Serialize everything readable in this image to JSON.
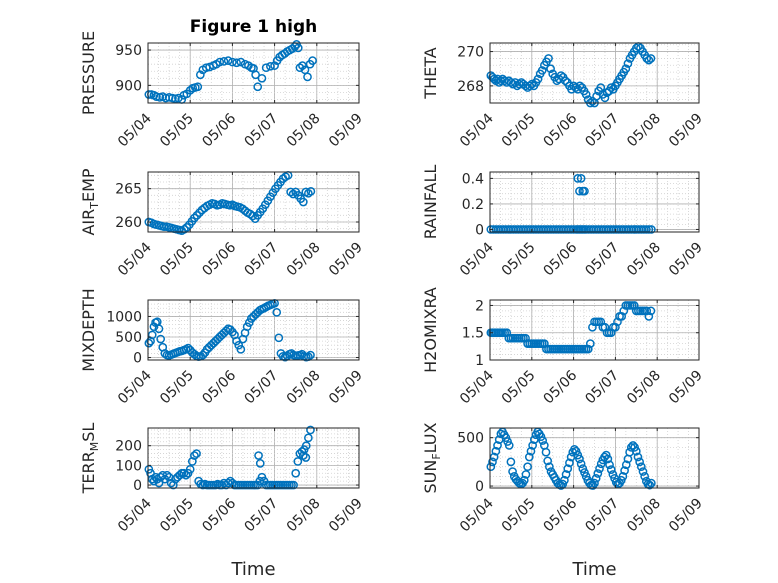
{
  "figure": {
    "title": "Figure 1 high"
  },
  "chart_data": [
    {
      "type": "scatter",
      "title": "Figure 1 high",
      "ylabel": "PRESSURE",
      "xlabel": "",
      "xlim": [
        "05/04",
        "05/09"
      ],
      "xticks": [
        "05/04",
        "05/05",
        "05/06",
        "05/07",
        "05/08",
        "05/09"
      ],
      "ylim": [
        875,
        960
      ],
      "yticks": [
        900,
        950
      ],
      "grid": true,
      "x": [
        4.02,
        4.08,
        4.14,
        4.2,
        4.28,
        4.35,
        4.42,
        4.5,
        4.58,
        4.65,
        4.72,
        4.8,
        4.85,
        4.92,
        5.0,
        5.06,
        5.12,
        5.18,
        5.24,
        5.3,
        5.38,
        5.46,
        5.55,
        5.62,
        5.7,
        5.8,
        5.9,
        6.0,
        6.1,
        6.2,
        6.3,
        6.38,
        6.45,
        6.5,
        6.55,
        6.6,
        6.7,
        6.8,
        6.9,
        7.0,
        7.06,
        7.12,
        7.18,
        7.24,
        7.3,
        7.36,
        7.42,
        7.48,
        7.52,
        7.56,
        7.6,
        7.66,
        7.72,
        7.78,
        7.84,
        7.9
      ],
      "y": [
        887,
        887,
        886,
        884,
        883,
        884,
        882,
        883,
        882,
        881,
        882,
        880,
        886,
        888,
        893,
        896,
        897,
        898,
        915,
        922,
        925,
        926,
        928,
        930,
        933,
        934,
        935,
        933,
        932,
        933,
        930,
        928,
        925,
        924,
        915,
        898,
        910,
        925,
        927,
        928,
        935,
        940,
        943,
        945,
        948,
        950,
        952,
        955,
        958,
        953,
        925,
        928,
        922,
        912,
        930,
        935
      ]
    },
    {
      "type": "scatter",
      "ylabel": "THETA",
      "xlabel": "",
      "xlim": [
        "05/04",
        "05/09"
      ],
      "xticks": [
        "05/04",
        "05/05",
        "05/06",
        "05/07",
        "05/08",
        "05/09"
      ],
      "ylim": [
        267,
        270.5
      ],
      "yticks": [
        268,
        270
      ],
      "grid": true,
      "x": [
        4.02,
        4.06,
        4.1,
        4.14,
        4.18,
        4.22,
        4.26,
        4.3,
        4.35,
        4.4,
        4.45,
        4.5,
        4.55,
        4.6,
        4.65,
        4.7,
        4.75,
        4.8,
        4.85,
        4.9,
        4.95,
        5.0,
        5.05,
        5.1,
        5.15,
        5.2,
        5.25,
        5.3,
        5.35,
        5.4,
        5.45,
        5.5,
        5.55,
        5.6,
        5.65,
        5.7,
        5.75,
        5.8,
        5.85,
        5.9,
        5.95,
        6.0,
        6.05,
        6.1,
        6.15,
        6.2,
        6.25,
        6.3,
        6.35,
        6.4,
        6.45,
        6.5,
        6.55,
        6.6,
        6.65,
        6.7,
        6.75,
        6.8,
        6.85,
        6.9,
        6.95,
        7.0,
        7.05,
        7.1,
        7.15,
        7.2,
        7.25,
        7.3,
        7.35,
        7.4,
        7.45,
        7.5,
        7.55,
        7.6,
        7.65,
        7.7,
        7.75,
        7.8,
        7.85
      ],
      "y": [
        268.6,
        268.5,
        268.4,
        268.3,
        268.4,
        268.2,
        268.3,
        268.4,
        268.3,
        268.2,
        268.3,
        268.2,
        268.1,
        268.2,
        268.0,
        268.1,
        268.2,
        268.1,
        268.0,
        267.9,
        268.0,
        268.1,
        268.0,
        268.2,
        268.4,
        268.7,
        268.9,
        269.2,
        269.4,
        269.6,
        269.0,
        268.7,
        268.5,
        268.3,
        268.4,
        268.6,
        268.5,
        268.3,
        268.2,
        268.0,
        267.8,
        268.0,
        267.9,
        267.8,
        268.0,
        267.9,
        267.7,
        267.5,
        267.2,
        267.0,
        267.1,
        267.0,
        267.4,
        267.7,
        267.9,
        267.5,
        267.3,
        267.6,
        267.7,
        267.9,
        267.8,
        268.0,
        268.2,
        268.4,
        268.6,
        268.8,
        269.0,
        269.3,
        269.6,
        269.8,
        270.0,
        270.2,
        270.3,
        270.2,
        270.0,
        269.8,
        269.6,
        269.5,
        269.6
      ]
    },
    {
      "type": "scatter",
      "ylabel": "AIR_TEMP",
      "xlabel": "",
      "xlim": [
        "05/04",
        "05/09"
      ],
      "xticks": [
        "05/04",
        "05/05",
        "05/06",
        "05/07",
        "05/08",
        "05/09"
      ],
      "ylim": [
        258.5,
        267.5
      ],
      "yticks": [
        260,
        265
      ],
      "grid": true,
      "x": [
        4.02,
        4.08,
        4.14,
        4.2,
        4.26,
        4.32,
        4.38,
        4.44,
        4.5,
        4.56,
        4.62,
        4.68,
        4.74,
        4.8,
        4.86,
        4.92,
        4.98,
        5.04,
        5.1,
        5.16,
        5.22,
        5.28,
        5.34,
        5.4,
        5.46,
        5.52,
        5.58,
        5.64,
        5.7,
        5.76,
        5.82,
        5.88,
        5.94,
        6.0,
        6.06,
        6.12,
        6.18,
        6.24,
        6.3,
        6.36,
        6.42,
        6.48,
        6.54,
        6.6,
        6.66,
        6.72,
        6.78,
        6.84,
        6.9,
        6.96,
        7.02,
        7.08,
        7.14,
        7.2,
        7.26,
        7.32,
        7.38,
        7.44,
        7.5,
        7.56,
        7.62,
        7.68,
        7.74,
        7.8,
        7.86
      ],
      "y": [
        260.0,
        259.9,
        259.7,
        259.6,
        259.5,
        259.4,
        259.3,
        259.3,
        259.2,
        259.1,
        259.0,
        258.9,
        258.8,
        258.7,
        258.9,
        259.2,
        259.6,
        260.1,
        260.6,
        261.0,
        261.4,
        261.8,
        262.1,
        262.4,
        262.6,
        262.8,
        262.7,
        262.5,
        262.6,
        262.8,
        262.7,
        262.6,
        262.5,
        262.6,
        262.4,
        262.3,
        262.2,
        262.0,
        261.7,
        261.4,
        261.2,
        260.9,
        260.5,
        261.0,
        261.5,
        262.0,
        262.6,
        263.2,
        263.8,
        264.4,
        265.0,
        265.5,
        266.0,
        266.5,
        266.8,
        267.0,
        264.5,
        264.2,
        264.5,
        264.0,
        263.5,
        263.0,
        264.5,
        264.3,
        264.6
      ]
    },
    {
      "type": "scatter",
      "ylabel": "RAINFALL",
      "xlabel": "",
      "xlim": [
        "05/04",
        "05/09"
      ],
      "xticks": [
        "05/04",
        "05/05",
        "05/06",
        "05/07",
        "05/08",
        "05/09"
      ],
      "ylim": [
        -0.02,
        0.45
      ],
      "yticks": [
        0,
        0.2,
        0.4
      ],
      "grid": true,
      "x": [
        4.02,
        4.08,
        4.14,
        4.2,
        4.26,
        4.32,
        4.38,
        4.44,
        4.5,
        4.56,
        4.62,
        4.68,
        4.74,
        4.8,
        4.86,
        4.92,
        4.98,
        5.04,
        5.1,
        5.16,
        5.22,
        5.28,
        5.34,
        5.4,
        5.46,
        5.52,
        5.58,
        5.64,
        5.7,
        5.76,
        5.82,
        5.88,
        5.94,
        6.0,
        6.06,
        6.1,
        6.14,
        6.18,
        6.22,
        6.26,
        6.3,
        6.36,
        6.42,
        6.48,
        6.54,
        6.6,
        6.66,
        6.72,
        6.78,
        6.84,
        6.9,
        6.96,
        7.02,
        7.08,
        7.14,
        7.2,
        7.26,
        7.32,
        7.38,
        7.44,
        7.5,
        7.56,
        7.62,
        7.68,
        7.74,
        7.8,
        7.86,
        6.1,
        6.14,
        6.18,
        6.22,
        6.26
      ],
      "y": [
        0,
        0,
        0,
        0,
        0,
        0,
        0,
        0,
        0,
        0,
        0,
        0,
        0,
        0,
        0,
        0,
        0,
        0,
        0,
        0,
        0,
        0,
        0,
        0,
        0,
        0,
        0,
        0,
        0,
        0,
        0,
        0,
        0,
        0,
        0,
        0,
        0,
        0,
        0,
        0,
        0,
        0,
        0,
        0,
        0,
        0,
        0,
        0,
        0,
        0,
        0,
        0,
        0,
        0,
        0,
        0,
        0,
        0,
        0,
        0,
        0,
        0,
        0,
        0,
        0,
        0,
        0,
        0.4,
        0.3,
        0.4,
        0.3,
        0.3
      ]
    },
    {
      "type": "scatter",
      "ylabel": "MIXDEPTH",
      "xlabel": "",
      "xlim": [
        "05/04",
        "05/09"
      ],
      "xticks": [
        "05/04",
        "05/05",
        "05/06",
        "05/07",
        "05/08",
        "05/09"
      ],
      "ylim": [
        -60,
        1400
      ],
      "yticks": [
        0,
        500,
        1000
      ],
      "grid": true,
      "x": [
        4.02,
        4.06,
        4.1,
        4.14,
        4.18,
        4.22,
        4.26,
        4.3,
        4.35,
        4.4,
        4.45,
        4.5,
        4.55,
        4.6,
        4.65,
        4.7,
        4.75,
        4.8,
        4.85,
        4.9,
        4.95,
        5.0,
        5.05,
        5.1,
        5.15,
        5.2,
        5.25,
        5.3,
        5.35,
        5.4,
        5.45,
        5.5,
        5.55,
        5.6,
        5.65,
        5.7,
        5.75,
        5.8,
        5.85,
        5.9,
        5.95,
        6.0,
        6.05,
        6.1,
        6.15,
        6.2,
        6.25,
        6.3,
        6.35,
        6.4,
        6.45,
        6.5,
        6.55,
        6.6,
        6.65,
        6.7,
        6.75,
        6.8,
        6.85,
        6.9,
        6.95,
        7.0,
        7.05,
        7.1,
        7.15,
        7.2,
        7.25,
        7.3,
        7.35,
        7.4,
        7.45,
        7.5,
        7.55,
        7.6,
        7.65,
        7.7,
        7.75,
        7.8,
        7.85
      ],
      "y": [
        350,
        400,
        550,
        750,
        850,
        870,
        700,
        450,
        250,
        100,
        60,
        50,
        70,
        90,
        110,
        130,
        150,
        160,
        180,
        200,
        230,
        180,
        120,
        80,
        40,
        20,
        30,
        60,
        120,
        200,
        250,
        300,
        350,
        400,
        450,
        500,
        550,
        600,
        650,
        700,
        680,
        620,
        550,
        400,
        300,
        200,
        450,
        600,
        750,
        850,
        950,
        1000,
        1050,
        1100,
        1150,
        1180,
        1200,
        1230,
        1260,
        1280,
        1300,
        1320,
        1100,
        480,
        100,
        30,
        10,
        40,
        80,
        100,
        60,
        40,
        50,
        60,
        80,
        30,
        10,
        20,
        60
      ]
    },
    {
      "type": "scatter",
      "ylabel": "H2OMIXRA",
      "xlabel": "",
      "xlim": [
        "05/04",
        "05/09"
      ],
      "xticks": [
        "05/04",
        "05/05",
        "05/06",
        "05/07",
        "05/08",
        "05/09"
      ],
      "ylim": [
        1,
        2.1
      ],
      "yticks": [
        1,
        1.5,
        2
      ],
      "grid": true,
      "x": [
        4.02,
        4.06,
        4.1,
        4.14,
        4.18,
        4.22,
        4.26,
        4.3,
        4.35,
        4.4,
        4.45,
        4.5,
        4.55,
        4.6,
        4.65,
        4.7,
        4.75,
        4.8,
        4.85,
        4.9,
        4.95,
        5.0,
        5.05,
        5.1,
        5.15,
        5.2,
        5.25,
        5.3,
        5.35,
        5.4,
        5.45,
        5.5,
        5.55,
        5.6,
        5.65,
        5.7,
        5.75,
        5.8,
        5.85,
        5.9,
        5.95,
        6.0,
        6.05,
        6.1,
        6.15,
        6.2,
        6.25,
        6.3,
        6.35,
        6.4,
        6.45,
        6.5,
        6.55,
        6.6,
        6.65,
        6.7,
        6.75,
        6.8,
        6.85,
        6.9,
        6.95,
        7.0,
        7.05,
        7.1,
        7.15,
        7.2,
        7.25,
        7.3,
        7.35,
        7.4,
        7.45,
        7.5,
        7.55,
        7.6,
        7.65,
        7.7,
        7.75,
        7.8,
        7.85
      ],
      "y": [
        1.5,
        1.5,
        1.5,
        1.5,
        1.5,
        1.5,
        1.5,
        1.5,
        1.5,
        1.5,
        1.4,
        1.4,
        1.4,
        1.4,
        1.4,
        1.4,
        1.4,
        1.4,
        1.4,
        1.3,
        1.3,
        1.3,
        1.3,
        1.3,
        1.3,
        1.3,
        1.3,
        1.3,
        1.2,
        1.2,
        1.2,
        1.2,
        1.2,
        1.2,
        1.2,
        1.2,
        1.2,
        1.2,
        1.2,
        1.2,
        1.2,
        1.2,
        1.2,
        1.2,
        1.2,
        1.2,
        1.2,
        1.2,
        1.2,
        1.3,
        1.6,
        1.7,
        1.7,
        1.7,
        1.7,
        1.6,
        1.6,
        1.5,
        1.5,
        1.5,
        1.6,
        1.6,
        1.7,
        1.8,
        1.8,
        1.9,
        2.0,
        2.0,
        2.0,
        2.0,
        2.0,
        1.9,
        1.9,
        1.9,
        1.9,
        1.9,
        1.9,
        1.8,
        1.9
      ]
    },
    {
      "type": "scatter",
      "ylabel": "TERR_MSL",
      "xlabel": "Time",
      "xlim": [
        "05/04",
        "05/09"
      ],
      "xticks": [
        "05/04",
        "05/05",
        "05/06",
        "05/07",
        "05/08",
        "05/09"
      ],
      "ylim": [
        -15,
        290
      ],
      "yticks": [
        0,
        100,
        200
      ],
      "grid": true,
      "x": [
        4.02,
        4.06,
        4.1,
        4.14,
        4.18,
        4.22,
        4.26,
        4.3,
        4.35,
        4.4,
        4.45,
        4.5,
        4.55,
        4.6,
        4.65,
        4.7,
        4.75,
        4.8,
        4.85,
        4.9,
        4.95,
        5.0,
        5.05,
        5.1,
        5.15,
        5.2,
        5.25,
        5.3,
        5.35,
        5.4,
        5.45,
        5.5,
        5.55,
        5.6,
        5.65,
        5.7,
        5.75,
        5.8,
        5.85,
        5.9,
        5.95,
        6.0,
        6.05,
        6.1,
        6.15,
        6.2,
        6.25,
        6.3,
        6.35,
        6.4,
        6.45,
        6.5,
        6.55,
        6.6,
        6.65,
        6.7,
        6.75,
        6.8,
        6.85,
        6.9,
        6.95,
        7.0,
        7.05,
        7.1,
        7.15,
        7.2,
        7.25,
        7.3,
        7.35,
        7.4,
        7.45,
        7.5,
        7.55,
        7.6,
        7.65,
        7.7,
        7.75,
        7.8,
        7.85,
        6.62,
        6.66,
        7.68,
        7.74
      ],
      "y": [
        80,
        60,
        30,
        20,
        40,
        30,
        10,
        40,
        50,
        30,
        50,
        40,
        10,
        0,
        30,
        40,
        50,
        60,
        60,
        50,
        60,
        80,
        120,
        150,
        160,
        20,
        5,
        0,
        5,
        0,
        0,
        0,
        0,
        0,
        5,
        0,
        0,
        10,
        0,
        10,
        20,
        10,
        0,
        0,
        0,
        0,
        0,
        0,
        0,
        0,
        0,
        0,
        0,
        0,
        20,
        40,
        20,
        0,
        0,
        0,
        0,
        0,
        0,
        0,
        0,
        0,
        0,
        0,
        0,
        0,
        0,
        60,
        120,
        160,
        170,
        180,
        200,
        240,
        280,
        150,
        110,
        150,
        140
      ]
    },
    {
      "type": "scatter",
      "ylabel": "SUN_FLUX",
      "xlabel": "Time",
      "xlim": [
        "05/04",
        "05/09"
      ],
      "xticks": [
        "05/04",
        "05/05",
        "05/06",
        "05/07",
        "05/08",
        "05/09"
      ],
      "ylim": [
        -20,
        600
      ],
      "yticks": [
        0,
        500
      ],
      "grid": true,
      "x": [
        4.02,
        4.06,
        4.1,
        4.14,
        4.18,
        4.22,
        4.26,
        4.3,
        4.34,
        4.38,
        4.42,
        4.46,
        4.5,
        4.54,
        4.58,
        4.62,
        4.66,
        4.7,
        4.74,
        4.78,
        4.82,
        4.86,
        4.9,
        4.94,
        4.98,
        5.02,
        5.06,
        5.1,
        5.14,
        5.18,
        5.22,
        5.26,
        5.3,
        5.34,
        5.38,
        5.42,
        5.46,
        5.5,
        5.54,
        5.58,
        5.62,
        5.66,
        5.7,
        5.74,
        5.78,
        5.82,
        5.86,
        5.9,
        5.94,
        5.98,
        6.02,
        6.06,
        6.1,
        6.14,
        6.18,
        6.22,
        6.26,
        6.3,
        6.34,
        6.38,
        6.42,
        6.46,
        6.5,
        6.54,
        6.58,
        6.62,
        6.66,
        6.7,
        6.74,
        6.78,
        6.82,
        6.86,
        6.9,
        6.94,
        6.98,
        7.02,
        7.06,
        7.1,
        7.14,
        7.18,
        7.22,
        7.26,
        7.3,
        7.34,
        7.38,
        7.42,
        7.46,
        7.5,
        7.54,
        7.58,
        7.62,
        7.66,
        7.7,
        7.74,
        7.78,
        7.82,
        7.86
      ],
      "y": [
        200,
        250,
        300,
        360,
        420,
        480,
        540,
        560,
        530,
        500,
        460,
        420,
        250,
        150,
        100,
        70,
        50,
        30,
        20,
        30,
        60,
        120,
        200,
        300,
        360,
        420,
        480,
        530,
        560,
        540,
        510,
        470,
        420,
        350,
        260,
        200,
        150,
        120,
        90,
        60,
        30,
        15,
        5,
        20,
        60,
        120,
        180,
        240,
        300,
        350,
        380,
        360,
        320,
        280,
        230,
        180,
        140,
        100,
        60,
        30,
        10,
        5,
        30,
        80,
        130,
        180,
        230,
        270,
        300,
        320,
        280,
        220,
        170,
        120,
        80,
        40,
        20,
        30,
        60,
        100,
        160,
        220,
        280,
        350,
        400,
        420,
        400,
        360,
        300,
        250,
        200,
        150,
        100,
        50,
        20,
        10,
        30
      ]
    }
  ]
}
